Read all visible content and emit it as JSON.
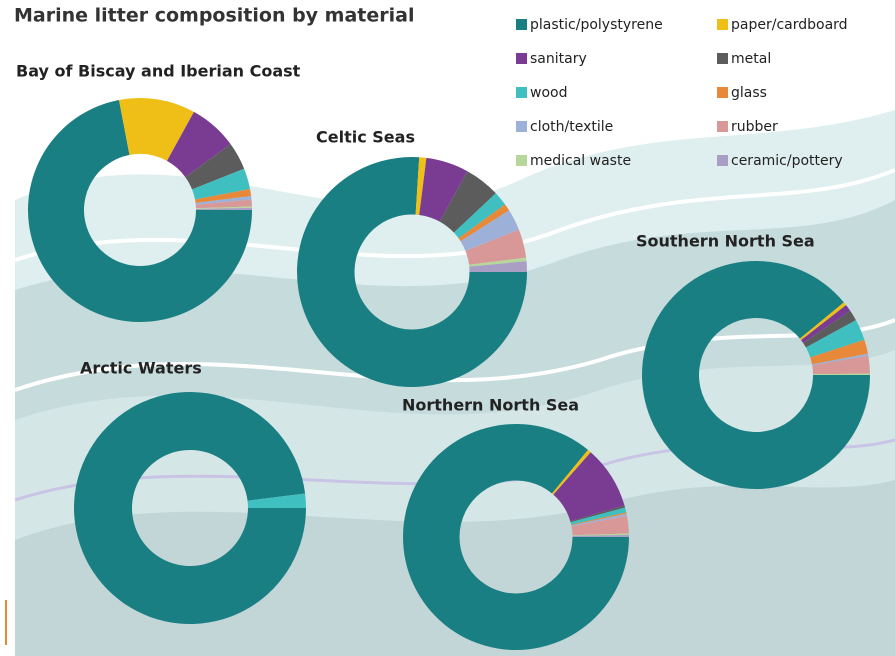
{
  "chart_data": {
    "type": "donut",
    "title": "Marine litter composition by material",
    "categories": [
      "plastic/polystyrene",
      "paper/cardboard",
      "sanitary",
      "metal",
      "wood",
      "glass",
      "cloth/textile",
      "rubber",
      "medical waste",
      "ceramic/pottery"
    ],
    "colors": [
      "#1a7f82",
      "#efbf17",
      "#7a3c92",
      "#5c5c5c",
      "#3fbfc0",
      "#e8893a",
      "#9cb0d8",
      "#d99898",
      "#b6d79a",
      "#a99ec4"
    ],
    "charts": [
      {
        "title": "Bay of Biscay and Iberian Coast",
        "values": [
          72,
          11,
          7,
          4,
          3,
          1,
          0.5,
          1,
          0.2,
          0.3
        ]
      },
      {
        "title": "Celtic Seas",
        "values": [
          76,
          1,
          6,
          5,
          2,
          1,
          3,
          4,
          0.5,
          1.5
        ]
      },
      {
        "title": "Southern North Sea",
        "values": [
          89,
          0.5,
          1,
          1.5,
          3,
          2,
          0.3,
          2.5,
          0.2,
          0
        ]
      },
      {
        "title": "Arctic Waters",
        "values": [
          98,
          0,
          0,
          0,
          2,
          0,
          0,
          0,
          0,
          0
        ]
      },
      {
        "title": "Northern North Sea",
        "values": [
          86,
          0.5,
          9,
          0.3,
          0.7,
          0.2,
          0.3,
          2.5,
          0.2,
          0.3
        ]
      }
    ]
  }
}
